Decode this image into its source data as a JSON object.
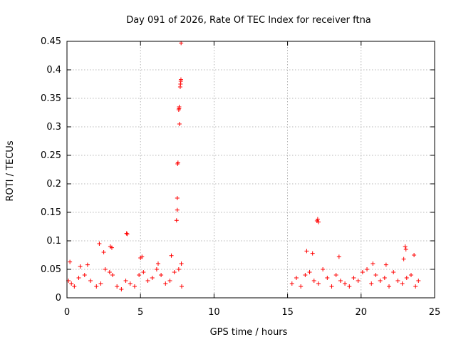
{
  "chart_data": {
    "type": "scatter",
    "title": "Day 091 of 2026, Rate Of TEC Index for receiver ftna",
    "xlabel": "GPS time / hours",
    "ylabel": "ROTI / TECUs",
    "xlim": [
      0,
      25
    ],
    "ylim": [
      0,
      0.45
    ],
    "xticks": [
      0,
      5,
      10,
      15,
      20,
      25
    ],
    "yticks": [
      0,
      0.05,
      0.1,
      0.15,
      0.2,
      0.25,
      0.3,
      0.35,
      0.4,
      0.45
    ],
    "grid": true,
    "marker": "plus",
    "color": "#ff0000",
    "x": [
      0.1,
      0.3,
      0.5,
      0.8,
      1.2,
      1.6,
      2.0,
      2.3,
      2.6,
      2.9,
      3.1,
      3.4,
      3.7,
      4.0,
      4.3,
      4.6,
      4.9,
      5.2,
      5.5,
      5.8,
      6.1,
      6.4,
      6.7,
      7.0,
      7.3,
      7.6,
      7.8,
      0.2,
      0.9,
      1.4,
      2.2,
      2.5,
      2.95,
      3.05,
      4.05,
      4.1,
      5.0,
      5.1,
      6.2,
      7.1,
      7.45,
      7.5,
      7.5,
      7.52,
      7.55,
      7.6,
      7.62,
      7.63,
      7.65,
      7.7,
      7.72,
      7.74,
      7.75,
      7.76,
      7.78,
      15.3,
      15.6,
      15.9,
      16.2,
      16.5,
      16.8,
      17.1,
      17.4,
      17.7,
      18.0,
      18.3,
      18.6,
      18.9,
      19.2,
      19.5,
      19.8,
      20.1,
      20.4,
      20.7,
      21.0,
      21.3,
      21.6,
      21.9,
      22.2,
      22.5,
      22.8,
      23.1,
      23.4,
      23.7,
      23.9,
      16.3,
      16.7,
      17.0,
      17.05,
      17.1,
      18.5,
      20.8,
      21.7,
      22.9,
      23.0,
      23.05,
      23.6
    ],
    "y": [
      0.03,
      0.025,
      0.02,
      0.035,
      0.04,
      0.03,
      0.02,
      0.025,
      0.05,
      0.045,
      0.04,
      0.02,
      0.015,
      0.03,
      0.025,
      0.02,
      0.04,
      0.045,
      0.03,
      0.035,
      0.05,
      0.04,
      0.025,
      0.03,
      0.045,
      0.05,
      0.02,
      0.063,
      0.055,
      0.058,
      0.095,
      0.08,
      0.09,
      0.088,
      0.113,
      0.112,
      0.07,
      0.072,
      0.06,
      0.074,
      0.136,
      0.154,
      0.175,
      0.235,
      0.237,
      0.33,
      0.332,
      0.335,
      0.305,
      0.37,
      0.375,
      0.38,
      0.383,
      0.447,
      0.06,
      0.025,
      0.035,
      0.02,
      0.04,
      0.045,
      0.03,
      0.025,
      0.05,
      0.035,
      0.02,
      0.04,
      0.03,
      0.025,
      0.02,
      0.035,
      0.03,
      0.045,
      0.05,
      0.025,
      0.04,
      0.03,
      0.035,
      0.02,
      0.045,
      0.03,
      0.025,
      0.035,
      0.04,
      0.02,
      0.03,
      0.082,
      0.078,
      0.135,
      0.138,
      0.133,
      0.072,
      0.06,
      0.058,
      0.068,
      0.09,
      0.085,
      0.075
    ]
  }
}
